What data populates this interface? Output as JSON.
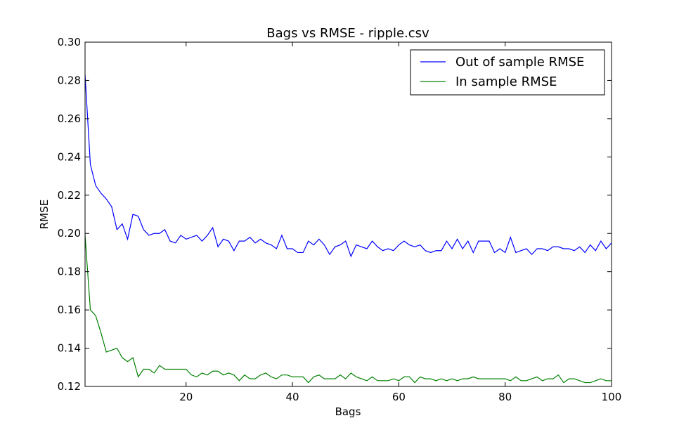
{
  "chart_data": {
    "type": "line",
    "title": "Bags vs RMSE - ripple.csv",
    "xlabel": "Bags",
    "ylabel": "RMSE",
    "xlim": [
      1,
      100
    ],
    "ylim": [
      0.12,
      0.3
    ],
    "xticks": [
      20,
      40,
      60,
      80,
      100
    ],
    "xtick_labels": [
      "20",
      "40",
      "60",
      "80",
      "100"
    ],
    "yticks": [
      0.12,
      0.14,
      0.16,
      0.18,
      0.2,
      0.22,
      0.24,
      0.26,
      0.28,
      0.3
    ],
    "ytick_labels": [
      "0.12",
      "0.14",
      "0.16",
      "0.18",
      "0.20",
      "0.22",
      "0.24",
      "0.26",
      "0.28",
      "0.30"
    ],
    "grid": false,
    "legend_position": "top-right",
    "x": [
      1,
      2,
      3,
      4,
      5,
      6,
      7,
      8,
      9,
      10,
      11,
      12,
      13,
      14,
      15,
      16,
      17,
      18,
      19,
      20,
      21,
      22,
      23,
      24,
      25,
      26,
      27,
      28,
      29,
      30,
      31,
      32,
      33,
      34,
      35,
      36,
      37,
      38,
      39,
      40,
      41,
      42,
      43,
      44,
      45,
      46,
      47,
      48,
      49,
      50,
      51,
      52,
      53,
      54,
      55,
      56,
      57,
      58,
      59,
      60,
      61,
      62,
      63,
      64,
      65,
      66,
      67,
      68,
      69,
      70,
      71,
      72,
      73,
      74,
      75,
      76,
      77,
      78,
      79,
      80,
      81,
      82,
      83,
      84,
      85,
      86,
      87,
      88,
      89,
      90,
      91,
      92,
      93,
      94,
      95,
      96,
      97,
      98,
      99,
      100
    ],
    "series": [
      {
        "name": "Out of sample RMSE",
        "color": "#0000ff",
        "values": [
          0.283,
          0.236,
          0.225,
          0.221,
          0.218,
          0.214,
          0.202,
          0.205,
          0.197,
          0.21,
          0.209,
          0.202,
          0.199,
          0.2,
          0.2,
          0.202,
          0.196,
          0.195,
          0.199,
          0.197,
          0.198,
          0.199,
          0.196,
          0.199,
          0.203,
          0.193,
          0.197,
          0.196,
          0.191,
          0.196,
          0.196,
          0.198,
          0.195,
          0.197,
          0.195,
          0.194,
          0.192,
          0.199,
          0.192,
          0.192,
          0.19,
          0.19,
          0.196,
          0.194,
          0.197,
          0.194,
          0.189,
          0.193,
          0.194,
          0.196,
          0.188,
          0.194,
          0.193,
          0.192,
          0.196,
          0.193,
          0.191,
          0.192,
          0.191,
          0.194,
          0.196,
          0.194,
          0.193,
          0.194,
          0.191,
          0.19,
          0.191,
          0.191,
          0.196,
          0.192,
          0.197,
          0.192,
          0.196,
          0.19,
          0.196,
          0.196,
          0.196,
          0.19,
          0.192,
          0.19,
          0.198,
          0.19,
          0.191,
          0.192,
          0.189,
          0.192,
          0.192,
          0.191,
          0.193,
          0.193,
          0.192,
          0.192,
          0.191,
          0.193,
          0.19,
          0.194,
          0.191,
          0.196,
          0.192,
          0.195
        ]
      },
      {
        "name": "In sample RMSE",
        "color": "#008000",
        "values": [
          0.199,
          0.16,
          0.157,
          0.148,
          0.138,
          0.139,
          0.14,
          0.135,
          0.133,
          0.135,
          0.125,
          0.129,
          0.129,
          0.127,
          0.131,
          0.129,
          0.129,
          0.129,
          0.129,
          0.129,
          0.126,
          0.125,
          0.127,
          0.126,
          0.128,
          0.128,
          0.126,
          0.127,
          0.126,
          0.123,
          0.126,
          0.124,
          0.124,
          0.126,
          0.127,
          0.125,
          0.124,
          0.126,
          0.126,
          0.125,
          0.125,
          0.125,
          0.122,
          0.125,
          0.126,
          0.124,
          0.124,
          0.124,
          0.126,
          0.124,
          0.127,
          0.125,
          0.124,
          0.123,
          0.125,
          0.123,
          0.123,
          0.123,
          0.124,
          0.123,
          0.125,
          0.125,
          0.122,
          0.125,
          0.124,
          0.124,
          0.123,
          0.124,
          0.123,
          0.124,
          0.123,
          0.124,
          0.124,
          0.125,
          0.124,
          0.124,
          0.124,
          0.124,
          0.124,
          0.124,
          0.123,
          0.125,
          0.123,
          0.123,
          0.124,
          0.125,
          0.123,
          0.124,
          0.124,
          0.126,
          0.122,
          0.124,
          0.124,
          0.123,
          0.122,
          0.122,
          0.123,
          0.124,
          0.123,
          0.123
        ]
      }
    ]
  }
}
